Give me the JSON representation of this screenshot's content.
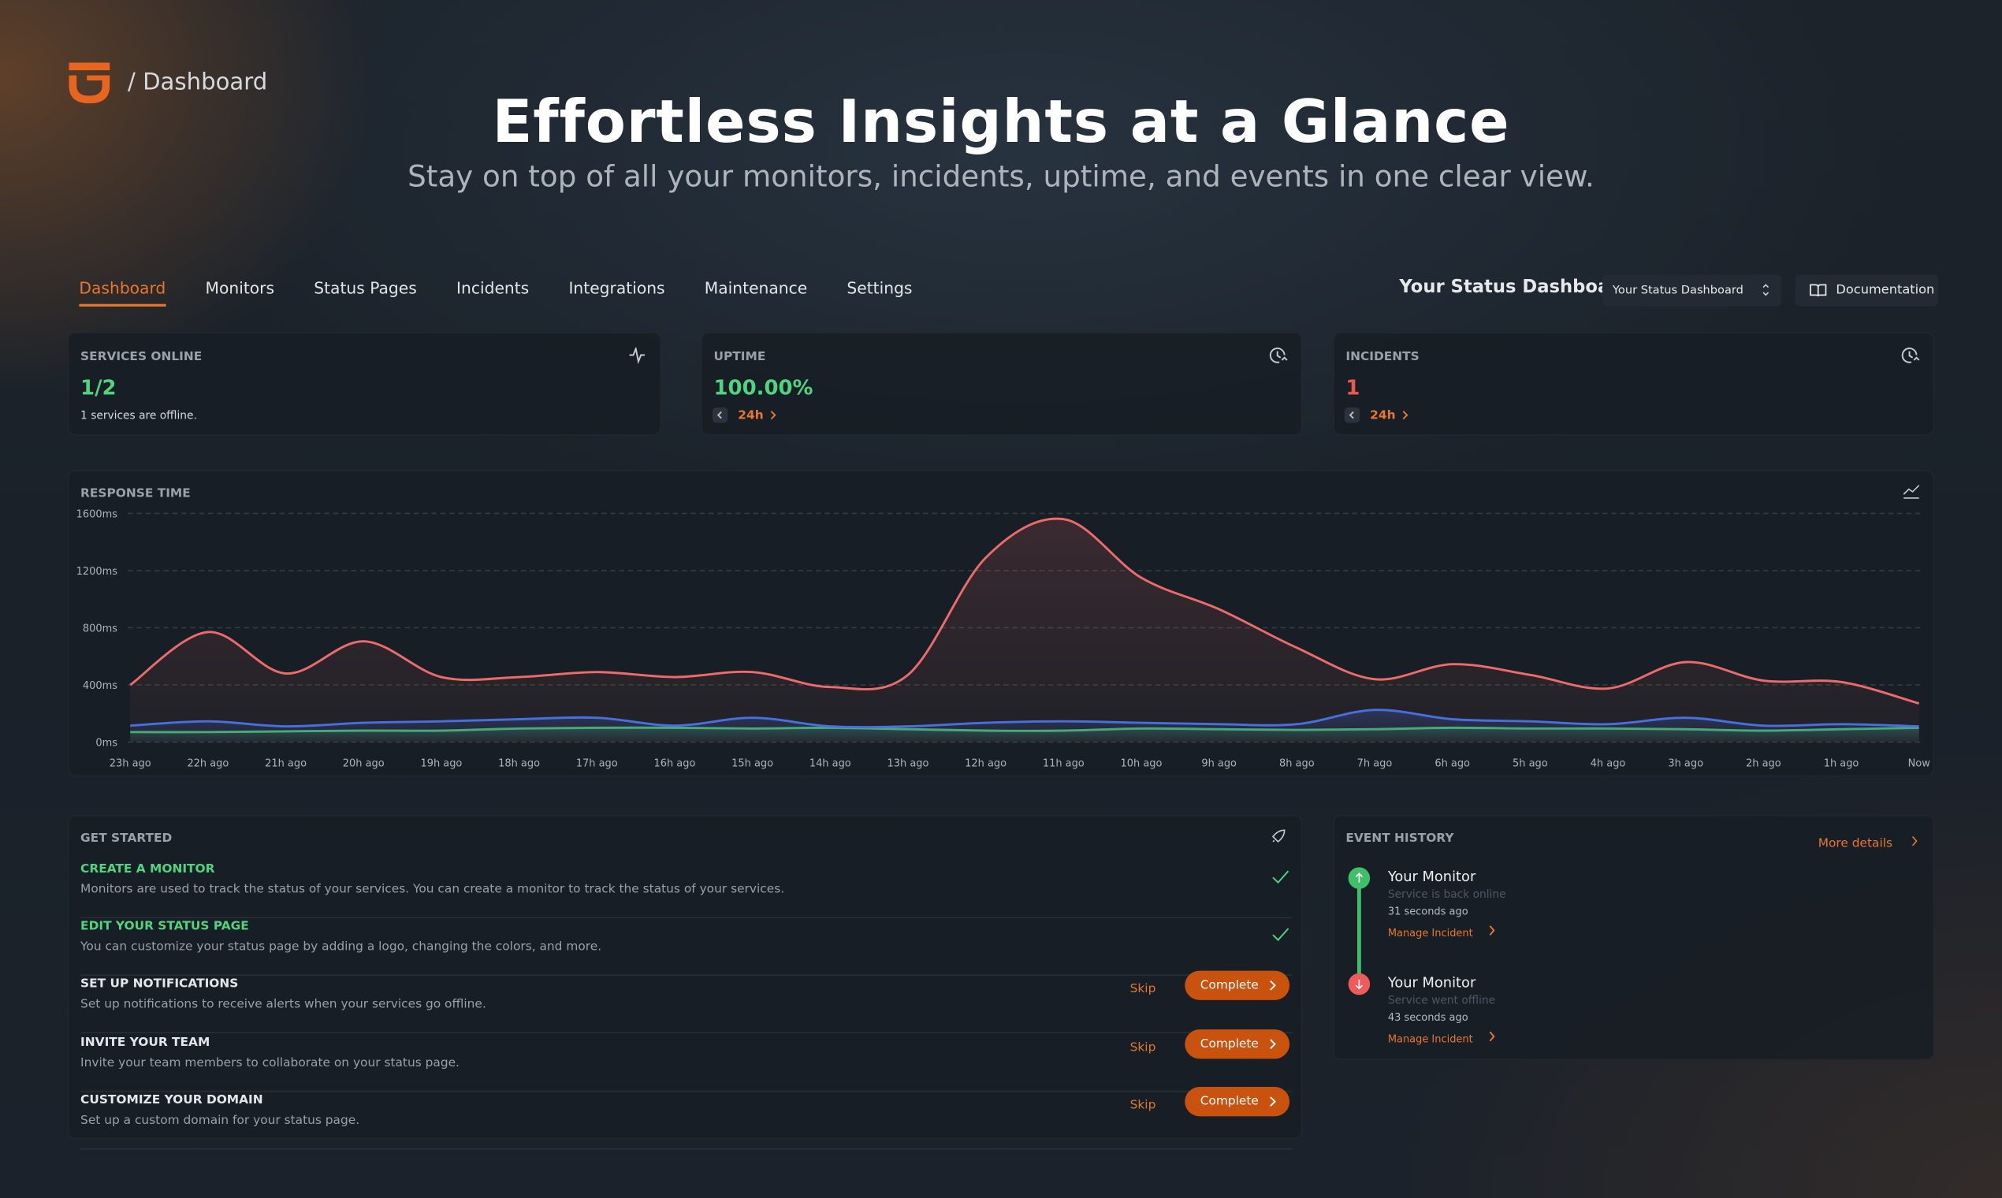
{
  "header": {
    "breadcrumb": "/ Dashboard",
    "title": "Effortless Insights at a Glance",
    "subtitle": "Stay on top of all your monitors, incidents, uptime, and events in one clear view."
  },
  "nav": {
    "tabs": [
      "Dashboard",
      "Monitors",
      "Status Pages",
      "Incidents",
      "Integrations",
      "Maintenance",
      "Settings"
    ],
    "dashboard_label": "Your Status Dashboard",
    "dashboard_select": "Your Status Dashboard",
    "documentation": "Documentation"
  },
  "cards": [
    {
      "title": "SERVICES ONLINE",
      "value": "1/2",
      "note": "1 services are offline."
    },
    {
      "title": "UPTIME",
      "value": "100.00%",
      "period": "24h"
    },
    {
      "title": "INCIDENTS",
      "value": "1",
      "period": "24h"
    }
  ],
  "response_time": {
    "type": "line",
    "title": "RESPONSE TIME",
    "categories": [
      "23h ago",
      "22h ago",
      "21h ago",
      "20h ago",
      "19h ago",
      "18h ago",
      "17h ago",
      "16h ago",
      "15h ago",
      "14h ago",
      "13h ago",
      "12h ago",
      "11h ago",
      "10h ago",
      "9h ago",
      "8h ago",
      "7h ago",
      "6h ago",
      "5h ago",
      "4h ago",
      "3h ago",
      "2h ago",
      "1h ago",
      "Now"
    ],
    "series": [
      {
        "color": "#ef6b6b",
        "values": [
          400,
          770,
          480,
          705,
          455,
          455,
          490,
          455,
          490,
          385,
          470,
          1290,
          1560,
          1150,
          930,
          660,
          440,
          545,
          470,
          375,
          560,
          430,
          420,
          270
        ]
      },
      {
        "color": "#3d6fe6",
        "values": [
          115,
          145,
          110,
          135,
          145,
          160,
          170,
          115,
          170,
          110,
          110,
          135,
          145,
          135,
          125,
          125,
          225,
          160,
          145,
          125,
          170,
          115,
          125,
          110
        ]
      },
      {
        "color": "#3fb56b",
        "values": [
          70,
          70,
          75,
          80,
          80,
          95,
          100,
          100,
          95,
          100,
          90,
          80,
          80,
          95,
          90,
          85,
          90,
          100,
          95,
          95,
          90,
          80,
          90,
          100
        ]
      }
    ],
    "ylim": [
      0,
      1600
    ],
    "yticks": [
      {
        "value": 0,
        "label": "0ms"
      },
      {
        "value": 400,
        "label": "400ms"
      },
      {
        "value": 800,
        "label": "800ms"
      },
      {
        "value": 1200,
        "label": "1200ms"
      },
      {
        "value": 1600,
        "label": "1600ms"
      }
    ],
    "grid": true
  },
  "get_started": {
    "title": "GET STARTED",
    "items": [
      {
        "title": "CREATE A MONITOR",
        "description": "Monitors are used to track the status of your services. You can create a monitor to track the status of your services.",
        "done": true
      },
      {
        "title": "EDIT YOUR STATUS PAGE",
        "description": "You can customize your status page by adding a logo, changing the colors, and more.",
        "done": true
      },
      {
        "title": "SET UP NOTIFICATIONS",
        "description": "Set up notifications to receive alerts when your services go offline.",
        "done": false,
        "skip": "Skip",
        "action": "Complete"
      },
      {
        "title": "INVITE YOUR TEAM",
        "description": "Invite your team members to collaborate on your status page.",
        "done": false,
        "skip": "Skip",
        "action": "Complete"
      },
      {
        "title": "CUSTOMIZE YOUR DOMAIN",
        "description": "Set up a custom domain for your status page.",
        "done": false,
        "skip": "Skip",
        "action": "Complete"
      }
    ]
  },
  "event_history": {
    "title": "EVENT HISTORY",
    "more": "More details",
    "events": [
      {
        "monitor": "Your Monitor",
        "status": "Service is back online",
        "time": "31 seconds ago",
        "action": "Manage Incident",
        "state": "up"
      },
      {
        "monitor": "Your Monitor",
        "status": "Service went offline",
        "time": "43 seconds ago",
        "action": "Manage Incident",
        "state": "down"
      }
    ]
  }
}
